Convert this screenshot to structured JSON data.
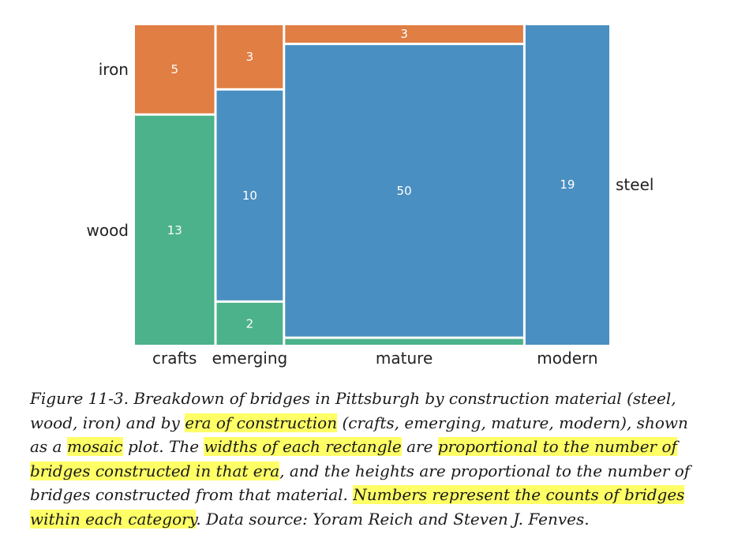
{
  "chart_data": {
    "type": "mosaic",
    "categories": [
      "crafts",
      "emerging",
      "mature",
      "modern"
    ],
    "materials": [
      "steel",
      "wood",
      "iron"
    ],
    "colors": {
      "steel": "#4a8fc1",
      "wood": "#4cb28c",
      "iron": "#e07e43"
    },
    "counts": {
      "crafts": {
        "iron": 5,
        "wood": 13,
        "steel": 0
      },
      "emerging": {
        "iron": 3,
        "wood": 2,
        "steel": 10
      },
      "mature": {
        "iron": 3,
        "wood": 1,
        "steel": 50
      },
      "modern": {
        "iron": 0,
        "wood": 0,
        "steel": 19
      }
    },
    "cell_labels": [
      {
        "era": "crafts",
        "material": "iron",
        "text": "5"
      },
      {
        "era": "crafts",
        "material": "wood",
        "text": "13"
      },
      {
        "era": "emerging",
        "material": "iron",
        "text": "3"
      },
      {
        "era": "emerging",
        "material": "steel",
        "text": "10"
      },
      {
        "era": "emerging",
        "material": "wood",
        "text": "2"
      },
      {
        "era": "mature",
        "material": "iron",
        "text": "3"
      },
      {
        "era": "mature",
        "material": "steel",
        "text": "50"
      },
      {
        "era": "modern",
        "material": "steel",
        "text": "19"
      }
    ],
    "row_labels": {
      "iron": "iron",
      "wood": "wood",
      "steel": "steel"
    }
  },
  "caption": {
    "parts": [
      {
        "text": "Figure 11-3. Breakdown of bridges in Pittsburgh by construction material (steel, wood, iron) and by ",
        "hl": false
      },
      {
        "text": "era of construction",
        "hl": true
      },
      {
        "text": " (crafts, emerging, mature, modern), shown as a ",
        "hl": false
      },
      {
        "text": "mosaic",
        "hl": true
      },
      {
        "text": " plot. The ",
        "hl": false
      },
      {
        "text": "widths of each rectangle",
        "hl": true
      },
      {
        "text": " are ",
        "hl": false
      },
      {
        "text": "proportional to the number of bridges constructed in that era",
        "hl": true
      },
      {
        "text": ", and the heights are proportional to the number of bridges constructed from that material. ",
        "hl": false
      },
      {
        "text": "Numbers represent the counts of bridges within each category",
        "hl": true
      },
      {
        "text": ". Data source: Yoram Reich and Steven J. Fenves.",
        "hl": false
      }
    ]
  }
}
